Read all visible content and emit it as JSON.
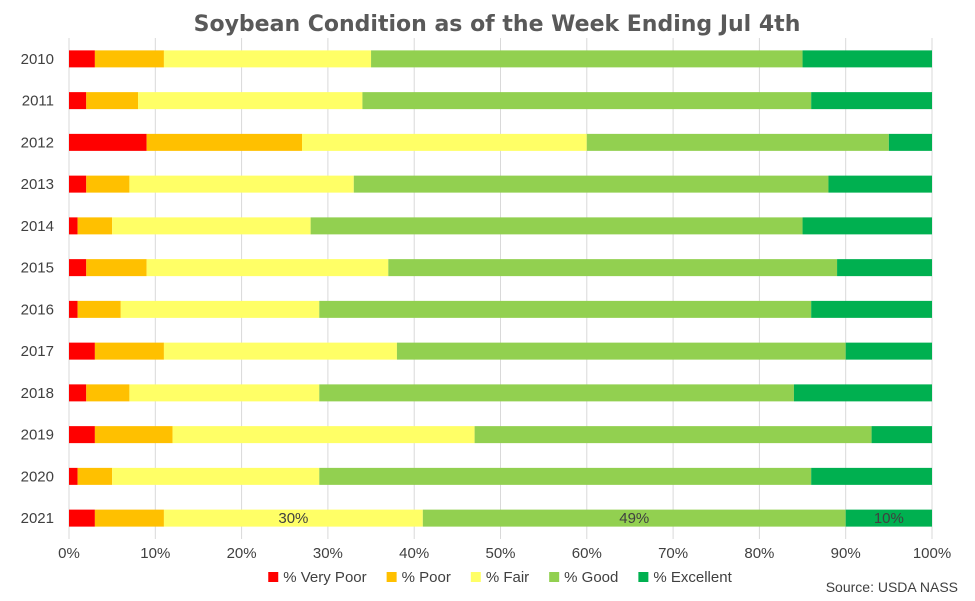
{
  "chart_data": {
    "type": "bar",
    "orientation": "horizontal",
    "stacked": true,
    "title": "Soybean Condition as of the Week Ending Jul 4th",
    "categories": [
      "2010",
      "2011",
      "2012",
      "2013",
      "2014",
      "2015",
      "2016",
      "2017",
      "2018",
      "2019",
      "2020",
      "2021"
    ],
    "series": [
      {
        "name": "% Very Poor",
        "color": "#ff0000",
        "values": [
          3,
          2,
          9,
          2,
          1,
          2,
          1,
          3,
          2,
          3,
          1,
          3
        ]
      },
      {
        "name": "% Poor",
        "color": "#ffc000",
        "values": [
          8,
          6,
          18,
          5,
          4,
          7,
          5,
          8,
          5,
          9,
          4,
          8
        ]
      },
      {
        "name": "% Fair",
        "color": "#ffff66",
        "values": [
          24,
          26,
          33,
          26,
          23,
          28,
          23,
          27,
          22,
          35,
          24,
          30
        ]
      },
      {
        "name": "% Good",
        "color": "#92d050",
        "values": [
          50,
          52,
          35,
          55,
          57,
          52,
          57,
          52,
          55,
          46,
          57,
          49
        ]
      },
      {
        "name": "% Excellent",
        "color": "#00b050",
        "values": [
          15,
          14,
          5,
          12,
          15,
          11,
          14,
          10,
          16,
          7,
          14,
          10
        ]
      }
    ],
    "data_labels": [
      {
        "category": "2021",
        "series": "% Fair",
        "text": "30%"
      },
      {
        "category": "2021",
        "series": "% Good",
        "text": "49%"
      },
      {
        "category": "2021",
        "series": "% Excellent",
        "text": "10%"
      }
    ],
    "xlim": [
      0,
      100
    ],
    "xticks": [
      "0%",
      "10%",
      "20%",
      "30%",
      "40%",
      "50%",
      "60%",
      "70%",
      "80%",
      "90%",
      "100%"
    ],
    "grid": true,
    "legend_position": "bottom"
  },
  "source_note": "Source: USDA NASS"
}
